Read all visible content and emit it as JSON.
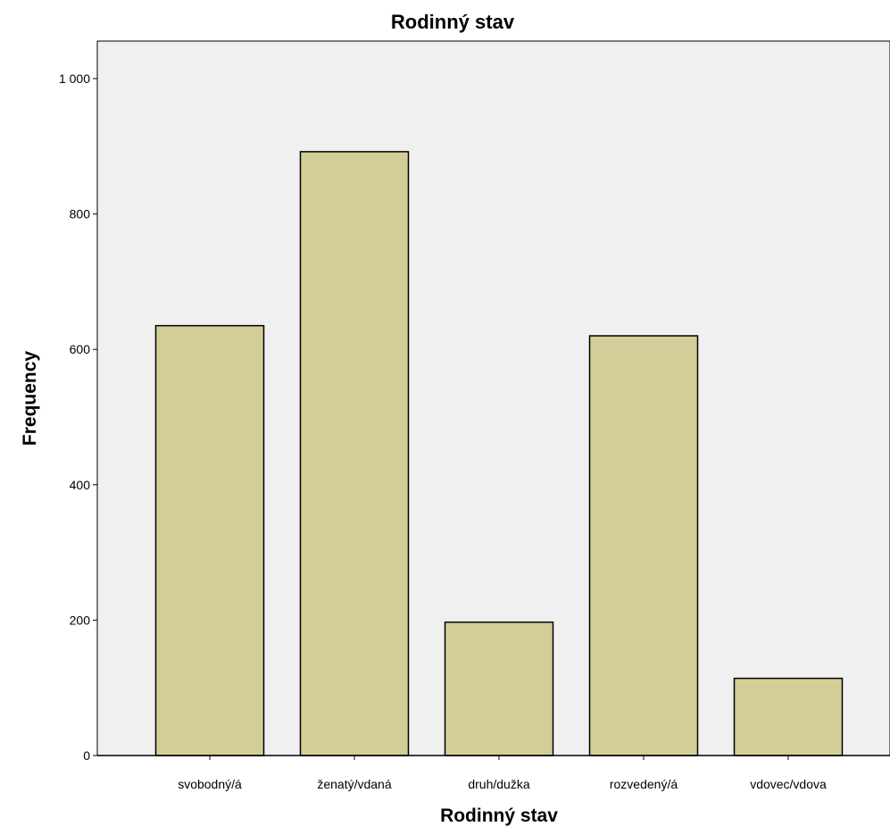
{
  "chart_data": {
    "type": "bar",
    "title": "Rodinný stav",
    "xlabel": "Rodinný stav",
    "ylabel": "Frequency",
    "categories": [
      "svobodný/á",
      "ženatý/vdaná",
      "druh/dužka",
      "rozvedený/á",
      "vdovec/vdova"
    ],
    "values": [
      635,
      892,
      197,
      620,
      114
    ],
    "ylim": [
      0,
      1000
    ],
    "yticks": [
      0,
      200,
      400,
      600,
      800,
      1000
    ],
    "ytick_labels": [
      "0",
      "200",
      "400",
      "600",
      "800",
      "1 000"
    ],
    "grid": false,
    "legend": "none",
    "colors": {
      "plot_background": "#f0f0f0",
      "bar_fill": "#d3ce97",
      "bar_stroke": "#000000"
    }
  }
}
